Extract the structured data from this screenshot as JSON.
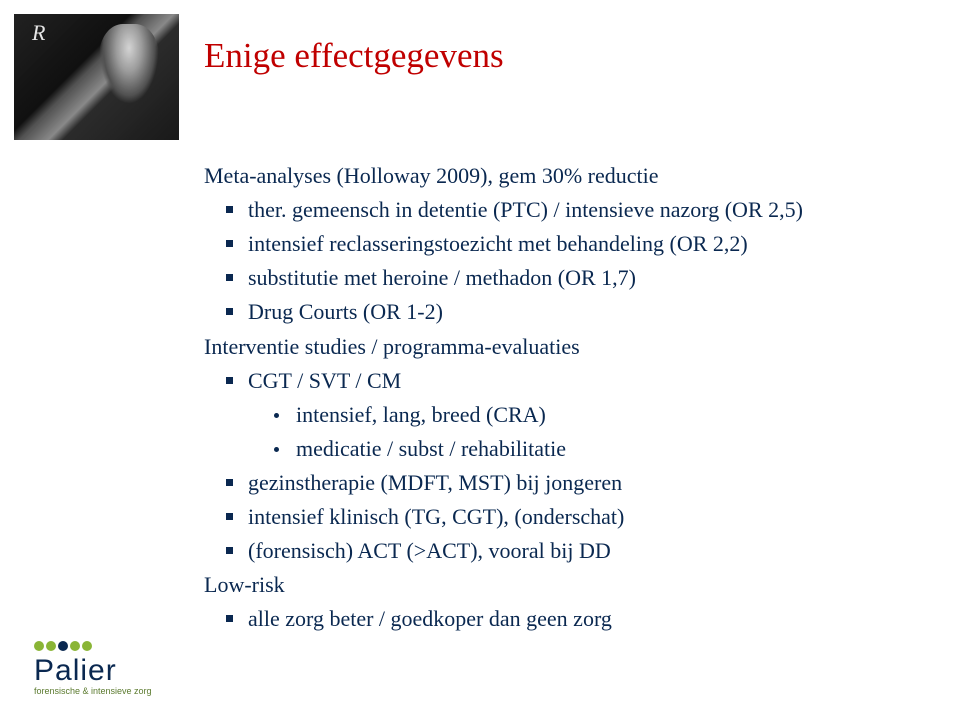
{
  "title": "Enige effectgegevens",
  "content": {
    "line1": "Meta-analyses (Holloway 2009), gem 30% reductie",
    "b1a": "ther. gemeensch in detentie (PTC) / intensieve nazorg (OR 2,5)",
    "b1b": "intensief reclasseringstoezicht met behandeling (OR 2,2)",
    "b1c": "substitutie met heroine / methadon (OR 1,7)",
    "b1d": "Drug Courts (OR 1-2)",
    "line2": "Interventie studies / programma-evaluaties",
    "b2a": "CGT / SVT / CM",
    "s2a1": "intensief, lang, breed (CRA)",
    "s2a2": "medicatie / subst / rehabilitatie",
    "b2b": "gezinstherapie (MDFT, MST) bij jongeren",
    "b2c": "intensief klinisch (TG, CGT), (onderschat)",
    "b2d": "(forensisch) ACT (>ACT), vooral bij DD",
    "line3": "Low-risk",
    "b3a": "alle zorg beter / goedkoper dan geen zorg"
  },
  "logo": {
    "name": "Palier",
    "tagline": "forensische & intensieve zorg"
  },
  "colors": {
    "title": "#c00000",
    "body": "#0a2850",
    "logo_green": "#8ab536",
    "background": "#ffffff"
  },
  "fonts": {
    "title_size": 35,
    "body_size": 22,
    "logo_size": 30,
    "tagline_size": 9
  }
}
